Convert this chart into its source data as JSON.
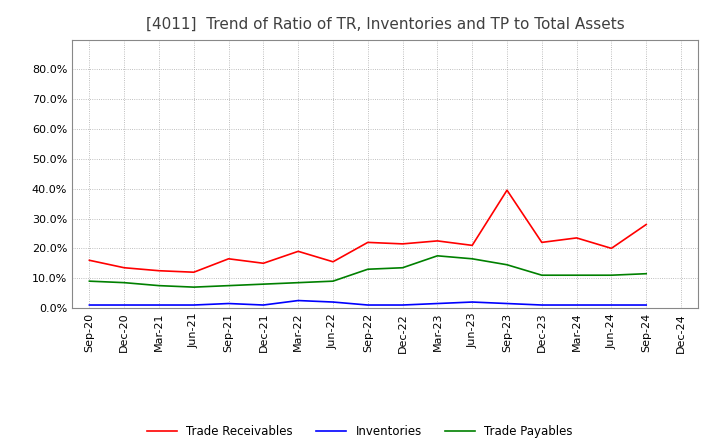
{
  "title": "[4011]  Trend of Ratio of TR, Inventories and TP to Total Assets",
  "x_labels": [
    "Sep-20",
    "Dec-20",
    "Mar-21",
    "Jun-21",
    "Sep-21",
    "Dec-21",
    "Mar-22",
    "Jun-22",
    "Sep-22",
    "Dec-22",
    "Mar-23",
    "Jun-23",
    "Sep-23",
    "Dec-23",
    "Mar-24",
    "Jun-24",
    "Sep-24",
    "Dec-24"
  ],
  "trade_receivables": [
    0.16,
    0.135,
    0.125,
    0.12,
    0.165,
    0.15,
    0.19,
    0.155,
    0.22,
    0.215,
    0.225,
    0.21,
    0.395,
    0.22,
    0.235,
    0.2,
    0.28,
    null
  ],
  "inventories": [
    0.01,
    0.01,
    0.01,
    0.01,
    0.015,
    0.01,
    0.025,
    0.02,
    0.01,
    0.01,
    0.015,
    0.02,
    0.015,
    0.01,
    0.01,
    0.01,
    0.01,
    null
  ],
  "trade_payables": [
    0.09,
    0.085,
    0.075,
    0.07,
    0.075,
    0.08,
    0.085,
    0.09,
    0.13,
    0.135,
    0.175,
    0.165,
    0.145,
    0.11,
    0.11,
    0.11,
    0.115,
    null
  ],
  "colors": {
    "trade_receivables": "#FF0000",
    "inventories": "#0000FF",
    "trade_payables": "#008000"
  },
  "ylim": [
    0.0,
    0.9
  ],
  "yticks": [
    0.0,
    0.1,
    0.2,
    0.3,
    0.4,
    0.5,
    0.6,
    0.7,
    0.8
  ],
  "background_color": "#FFFFFF",
  "grid_color": "#AAAAAA",
  "title_fontsize": 11,
  "title_color": "#404040",
  "tick_fontsize": 8,
  "legend_labels": [
    "Trade Receivables",
    "Inventories",
    "Trade Payables"
  ]
}
